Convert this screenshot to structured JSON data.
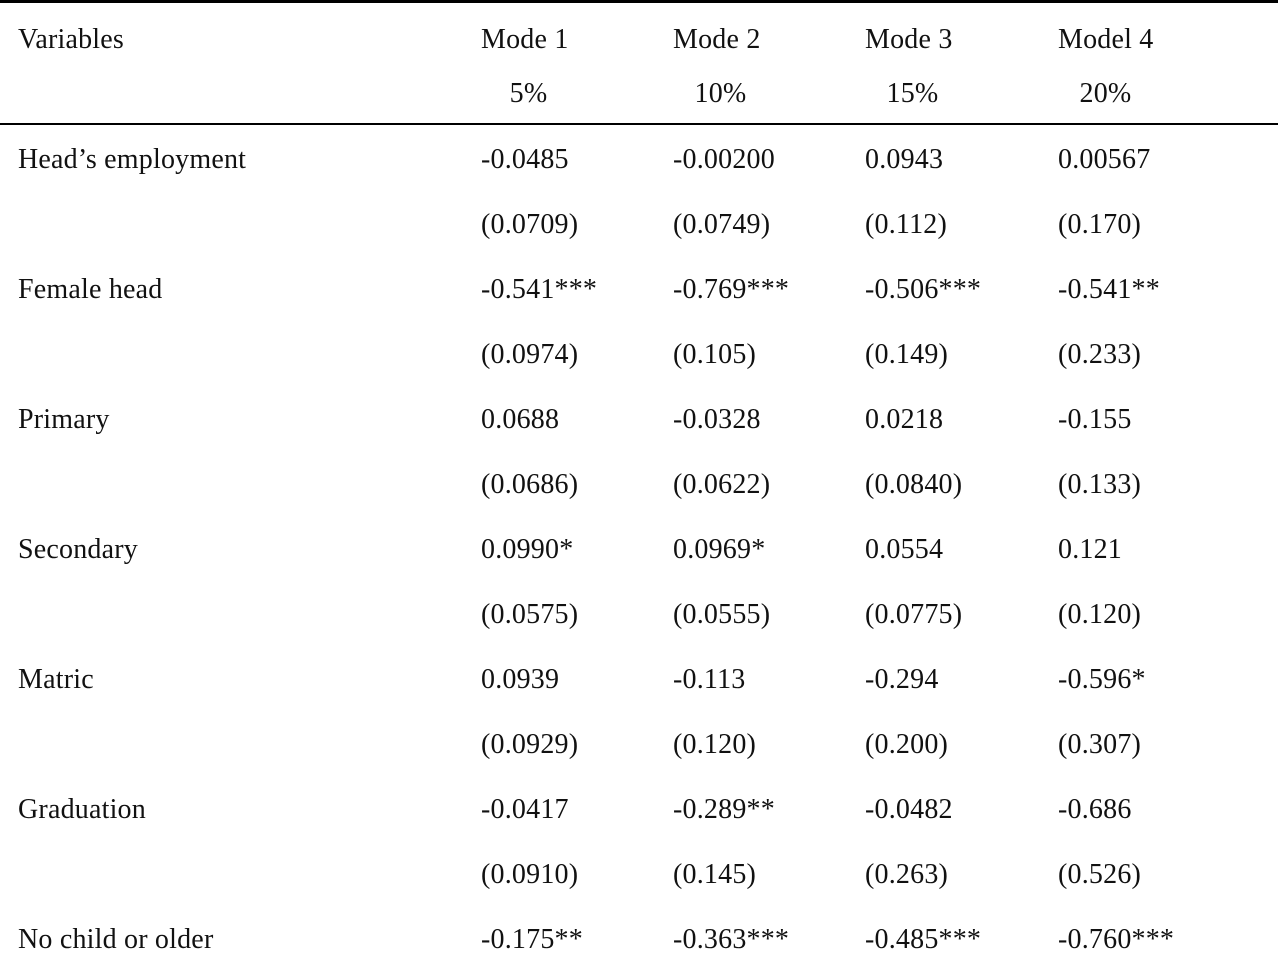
{
  "table": {
    "header": {
      "variables_label": "Variables",
      "columns": [
        {
          "model": "Mode 1",
          "percent": "5%"
        },
        {
          "model": "Mode 2",
          "percent": "10%"
        },
        {
          "model": "Mode 3",
          "percent": "15%"
        },
        {
          "model": "Model 4",
          "percent": "20%"
        }
      ]
    },
    "rows": [
      {
        "label": "Head’s employment",
        "coef": [
          "-0.0485",
          "-0.00200",
          "0.0943",
          "0.00567"
        ],
        "se": [
          "(0.0709)",
          "(0.0749)",
          "(0.112)",
          "(0.170)"
        ]
      },
      {
        "label": "Female head",
        "coef": [
          "-0.541***",
          "-0.769***",
          "-0.506***",
          "-0.541**"
        ],
        "se": [
          "(0.0974)",
          "(0.105)",
          "(0.149)",
          "(0.233)"
        ]
      },
      {
        "label": "Primary",
        "coef": [
          "0.0688",
          "-0.0328",
          "0.0218",
          "-0.155"
        ],
        "se": [
          "(0.0686)",
          "(0.0622)",
          "(0.0840)",
          "(0.133)"
        ]
      },
      {
        "label": "Secondary",
        "coef": [
          "0.0990*",
          "0.0969*",
          "0.0554",
          "0.121"
        ],
        "se": [
          "(0.0575)",
          "(0.0555)",
          "(0.0775)",
          "(0.120)"
        ]
      },
      {
        "label": "Matric",
        "coef": [
          "0.0939",
          "-0.113",
          "-0.294",
          "-0.596*"
        ],
        "se": [
          "(0.0929)",
          "(0.120)",
          "(0.200)",
          "(0.307)"
        ]
      },
      {
        "label": "Graduation",
        "coef": [
          "-0.0417",
          "-0.289**",
          "-0.0482",
          "-0.686"
        ],
        "se": [
          "(0.0910)",
          "(0.145)",
          "(0.263)",
          "(0.526)"
        ]
      },
      {
        "label": "No child or older",
        "coef": [
          "-0.175**",
          "-0.363***",
          "-0.485***",
          "-0.760***"
        ],
        "se": []
      }
    ]
  }
}
